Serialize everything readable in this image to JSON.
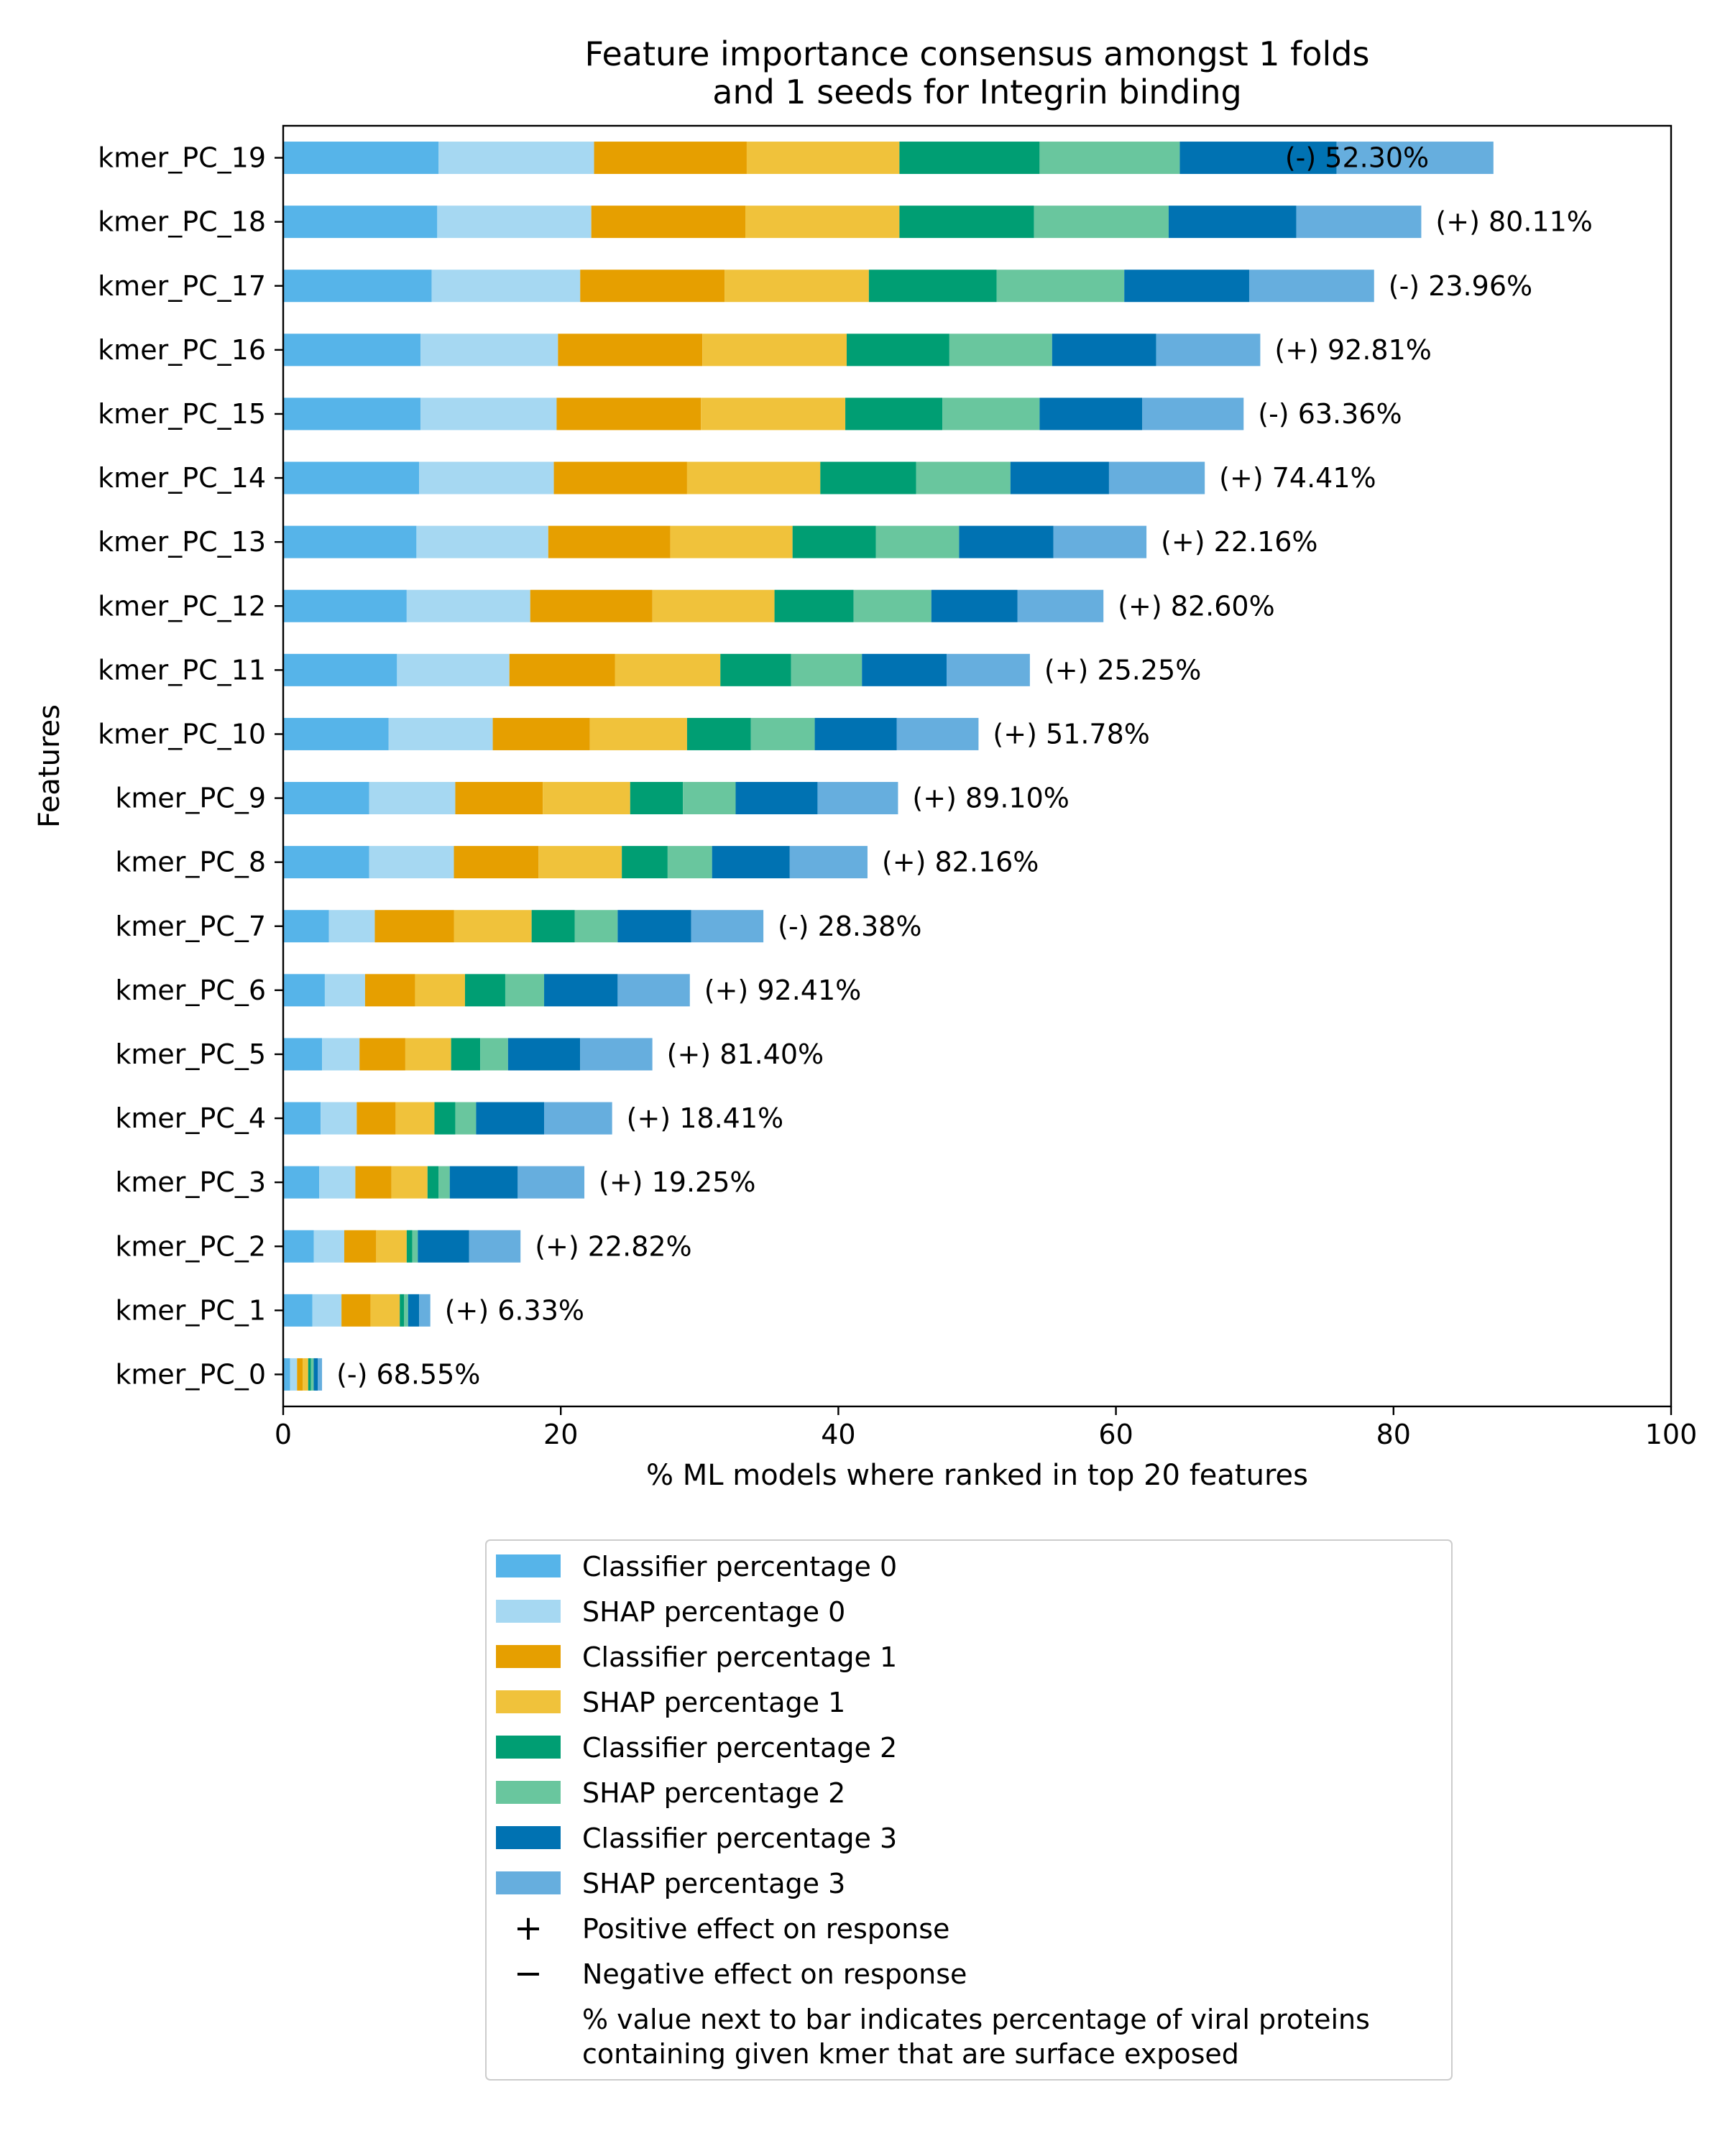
{
  "chart_data": {
    "type": "bar",
    "orientation": "horizontal",
    "stacked": true,
    "title": "Feature importance consensus amongst 1 folds\nand 1 seeds for Integrin binding",
    "xlabel": "% ML models where ranked in top 20 features",
    "ylabel": "Features",
    "xlim": [
      0,
      100
    ],
    "xticks": [
      0,
      20,
      40,
      60,
      80,
      100
    ],
    "grid": false,
    "legend_position": "below",
    "categories": [
      "kmer_PC_0",
      "kmer_PC_1",
      "kmer_PC_2",
      "kmer_PC_3",
      "kmer_PC_4",
      "kmer_PC_5",
      "kmer_PC_6",
      "kmer_PC_7",
      "kmer_PC_8",
      "kmer_PC_9",
      "kmer_PC_10",
      "kmer_PC_11",
      "kmer_PC_12",
      "kmer_PC_13",
      "kmer_PC_14",
      "kmer_PC_15",
      "kmer_PC_16",
      "kmer_PC_17",
      "kmer_PC_18",
      "kmer_PC_19"
    ],
    "series": [
      {
        "name": "Classifier percentage 0",
        "color": "#56b4e9",
        "values": [
          0.5,
          2.1,
          2.2,
          2.6,
          2.7,
          2.8,
          3.0,
          3.3,
          6.2,
          6.2,
          7.6,
          8.2,
          8.9,
          9.6,
          9.8,
          9.9,
          9.9,
          10.7,
          11.1,
          11.2
        ]
      },
      {
        "name": "SHAP percentage 0",
        "color": "#a6d8f2",
        "values": [
          0.5,
          2.1,
          2.2,
          2.6,
          2.6,
          2.7,
          2.9,
          3.3,
          6.1,
          6.2,
          7.5,
          8.1,
          8.9,
          9.5,
          9.7,
          9.8,
          9.9,
          10.7,
          11.1,
          11.2
        ]
      },
      {
        "name": "Classifier percentage 1",
        "color": "#e69f00",
        "values": [
          0.4,
          2.1,
          2.3,
          2.6,
          2.8,
          3.3,
          3.6,
          5.7,
          6.1,
          6.3,
          7.0,
          7.6,
          8.8,
          8.8,
          9.6,
          10.4,
          10.4,
          10.4,
          11.1,
          11.0
        ]
      },
      {
        "name": "SHAP percentage 1",
        "color": "#f0c23b",
        "values": [
          0.4,
          2.1,
          2.2,
          2.6,
          2.8,
          3.3,
          3.6,
          5.6,
          6.0,
          6.3,
          7.0,
          7.6,
          8.8,
          8.8,
          9.6,
          10.4,
          10.4,
          10.4,
          11.1,
          11.0
        ]
      },
      {
        "name": "Classifier percentage 2",
        "color": "#009e73",
        "values": [
          0.2,
          0.3,
          0.4,
          0.8,
          1.5,
          2.1,
          2.9,
          3.1,
          3.3,
          3.8,
          4.6,
          5.1,
          5.7,
          6.0,
          6.9,
          7.0,
          7.4,
          9.2,
          9.7,
          10.1
        ]
      },
      {
        "name": "SHAP percentage 2",
        "color": "#69c69e",
        "values": [
          0.2,
          0.3,
          0.4,
          0.8,
          1.5,
          2.0,
          2.8,
          3.1,
          3.2,
          3.8,
          4.6,
          5.1,
          5.6,
          6.0,
          6.8,
          7.0,
          7.4,
          9.2,
          9.7,
          10.1
        ]
      },
      {
        "name": "Classifier percentage 3",
        "color": "#0072b2",
        "values": [
          0.3,
          0.8,
          3.7,
          4.9,
          4.9,
          5.2,
          5.3,
          5.3,
          5.6,
          5.9,
          5.9,
          6.1,
          6.2,
          6.8,
          7.1,
          7.4,
          7.5,
          9.0,
          9.2,
          11.3
        ]
      },
      {
        "name": "SHAP percentage 3",
        "color": "#66aede",
        "values": [
          0.3,
          0.8,
          3.7,
          4.8,
          4.9,
          5.2,
          5.2,
          5.2,
          5.6,
          5.8,
          5.9,
          6.0,
          6.2,
          6.7,
          6.9,
          7.3,
          7.5,
          9.0,
          9.0,
          11.3
        ]
      }
    ],
    "annotations": [
      "(-) 68.55%",
      "(+) 6.33%",
      "(+) 22.82%",
      "(+) 19.25%",
      "(+) 18.41%",
      "(+) 81.40%",
      "(+) 92.41%",
      "(-) 28.38%",
      "(+) 82.16%",
      "(+) 89.10%",
      "(+) 51.78%",
      "(+) 25.25%",
      "(+) 82.60%",
      "(+) 22.16%",
      "(+) 74.41%",
      "(-) 63.36%",
      "(+) 92.81%",
      "(-) 23.96%",
      "(+) 80.11%",
      "(-) 52.30%"
    ],
    "legend_extra": [
      {
        "symbol": "+",
        "label": "Positive effect on response"
      },
      {
        "symbol": "−",
        "label": "Negative effect on response"
      },
      {
        "symbol": "",
        "label": "% value next to bar indicates percentage of viral proteins\n containing given kmer that are surface exposed"
      }
    ]
  }
}
